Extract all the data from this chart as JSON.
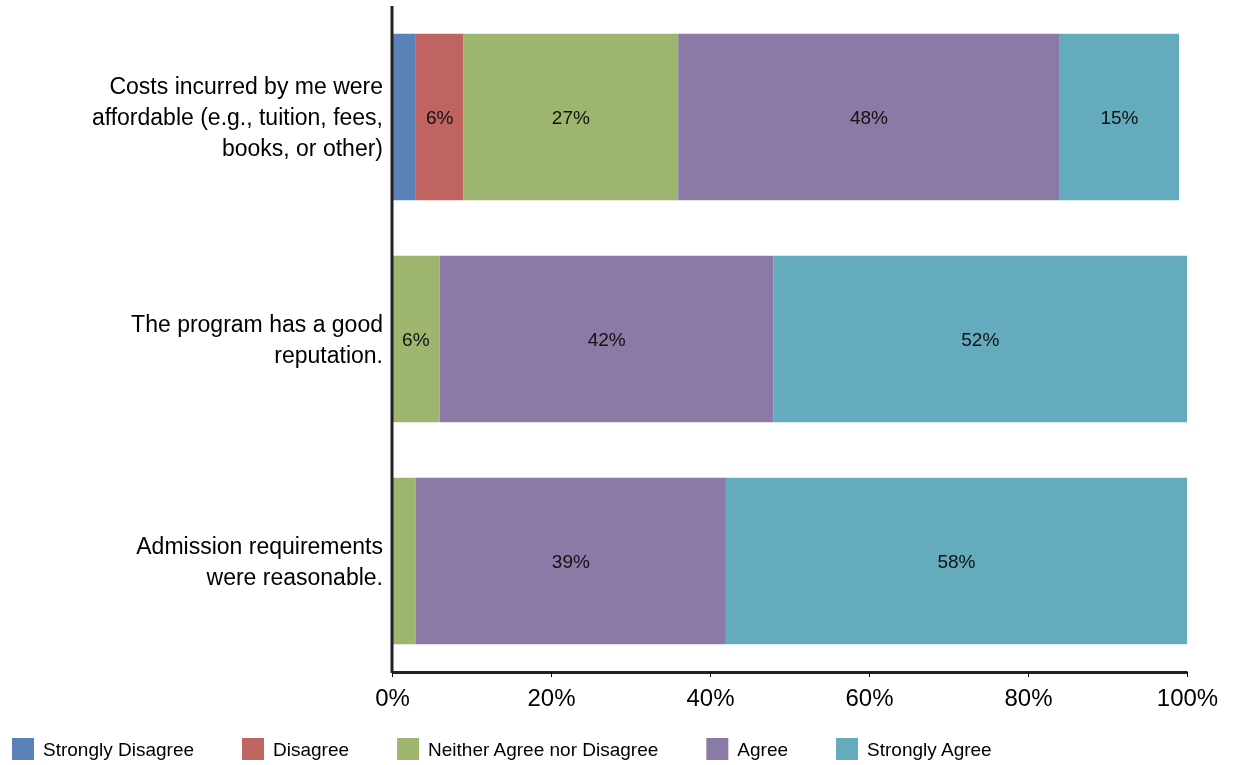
{
  "chart_data": {
    "type": "bar",
    "orientation": "horizontal",
    "stacked": true,
    "categories": [
      "Costs incurred by me were affordable (e.g., tuition, fees, books, or other)",
      "The program has a good reputation.",
      "Admission requirements were reasonable."
    ],
    "series": [
      {
        "name": "Strongly Disagree",
        "color": "#5a82b8",
        "values": [
          3,
          0,
          0
        ],
        "value_labels": [
          null,
          null,
          null
        ]
      },
      {
        "name": "Disagree",
        "color": "#bf6461",
        "values": [
          6,
          0,
          0
        ],
        "value_labels": [
          "6%",
          null,
          null
        ]
      },
      {
        "name": "Neither Agree nor Disagree",
        "color": "#9db56f",
        "values": [
          27,
          6,
          3
        ],
        "value_labels": [
          "27%",
          "6%",
          null
        ]
      },
      {
        "name": "Agree",
        "color": "#8b7aa5",
        "values": [
          48,
          42,
          39
        ],
        "value_labels": [
          "48%",
          "42%",
          "39%"
        ]
      },
      {
        "name": "Strongly Agree",
        "color": "#64abbd",
        "values": [
          15,
          52,
          58
        ],
        "value_labels": [
          "15%",
          "52%",
          "58%"
        ]
      }
    ],
    "xlim": [
      0,
      100
    ],
    "xticks": [
      {
        "value": 0,
        "label": "0%"
      },
      {
        "value": 20,
        "label": "20%"
      },
      {
        "value": 40,
        "label": "40%"
      },
      {
        "value": 60,
        "label": "60%"
      },
      {
        "value": 80,
        "label": "80%"
      },
      {
        "value": 100,
        "label": "100%"
      }
    ],
    "grid": false,
    "legend": "bottom"
  }
}
